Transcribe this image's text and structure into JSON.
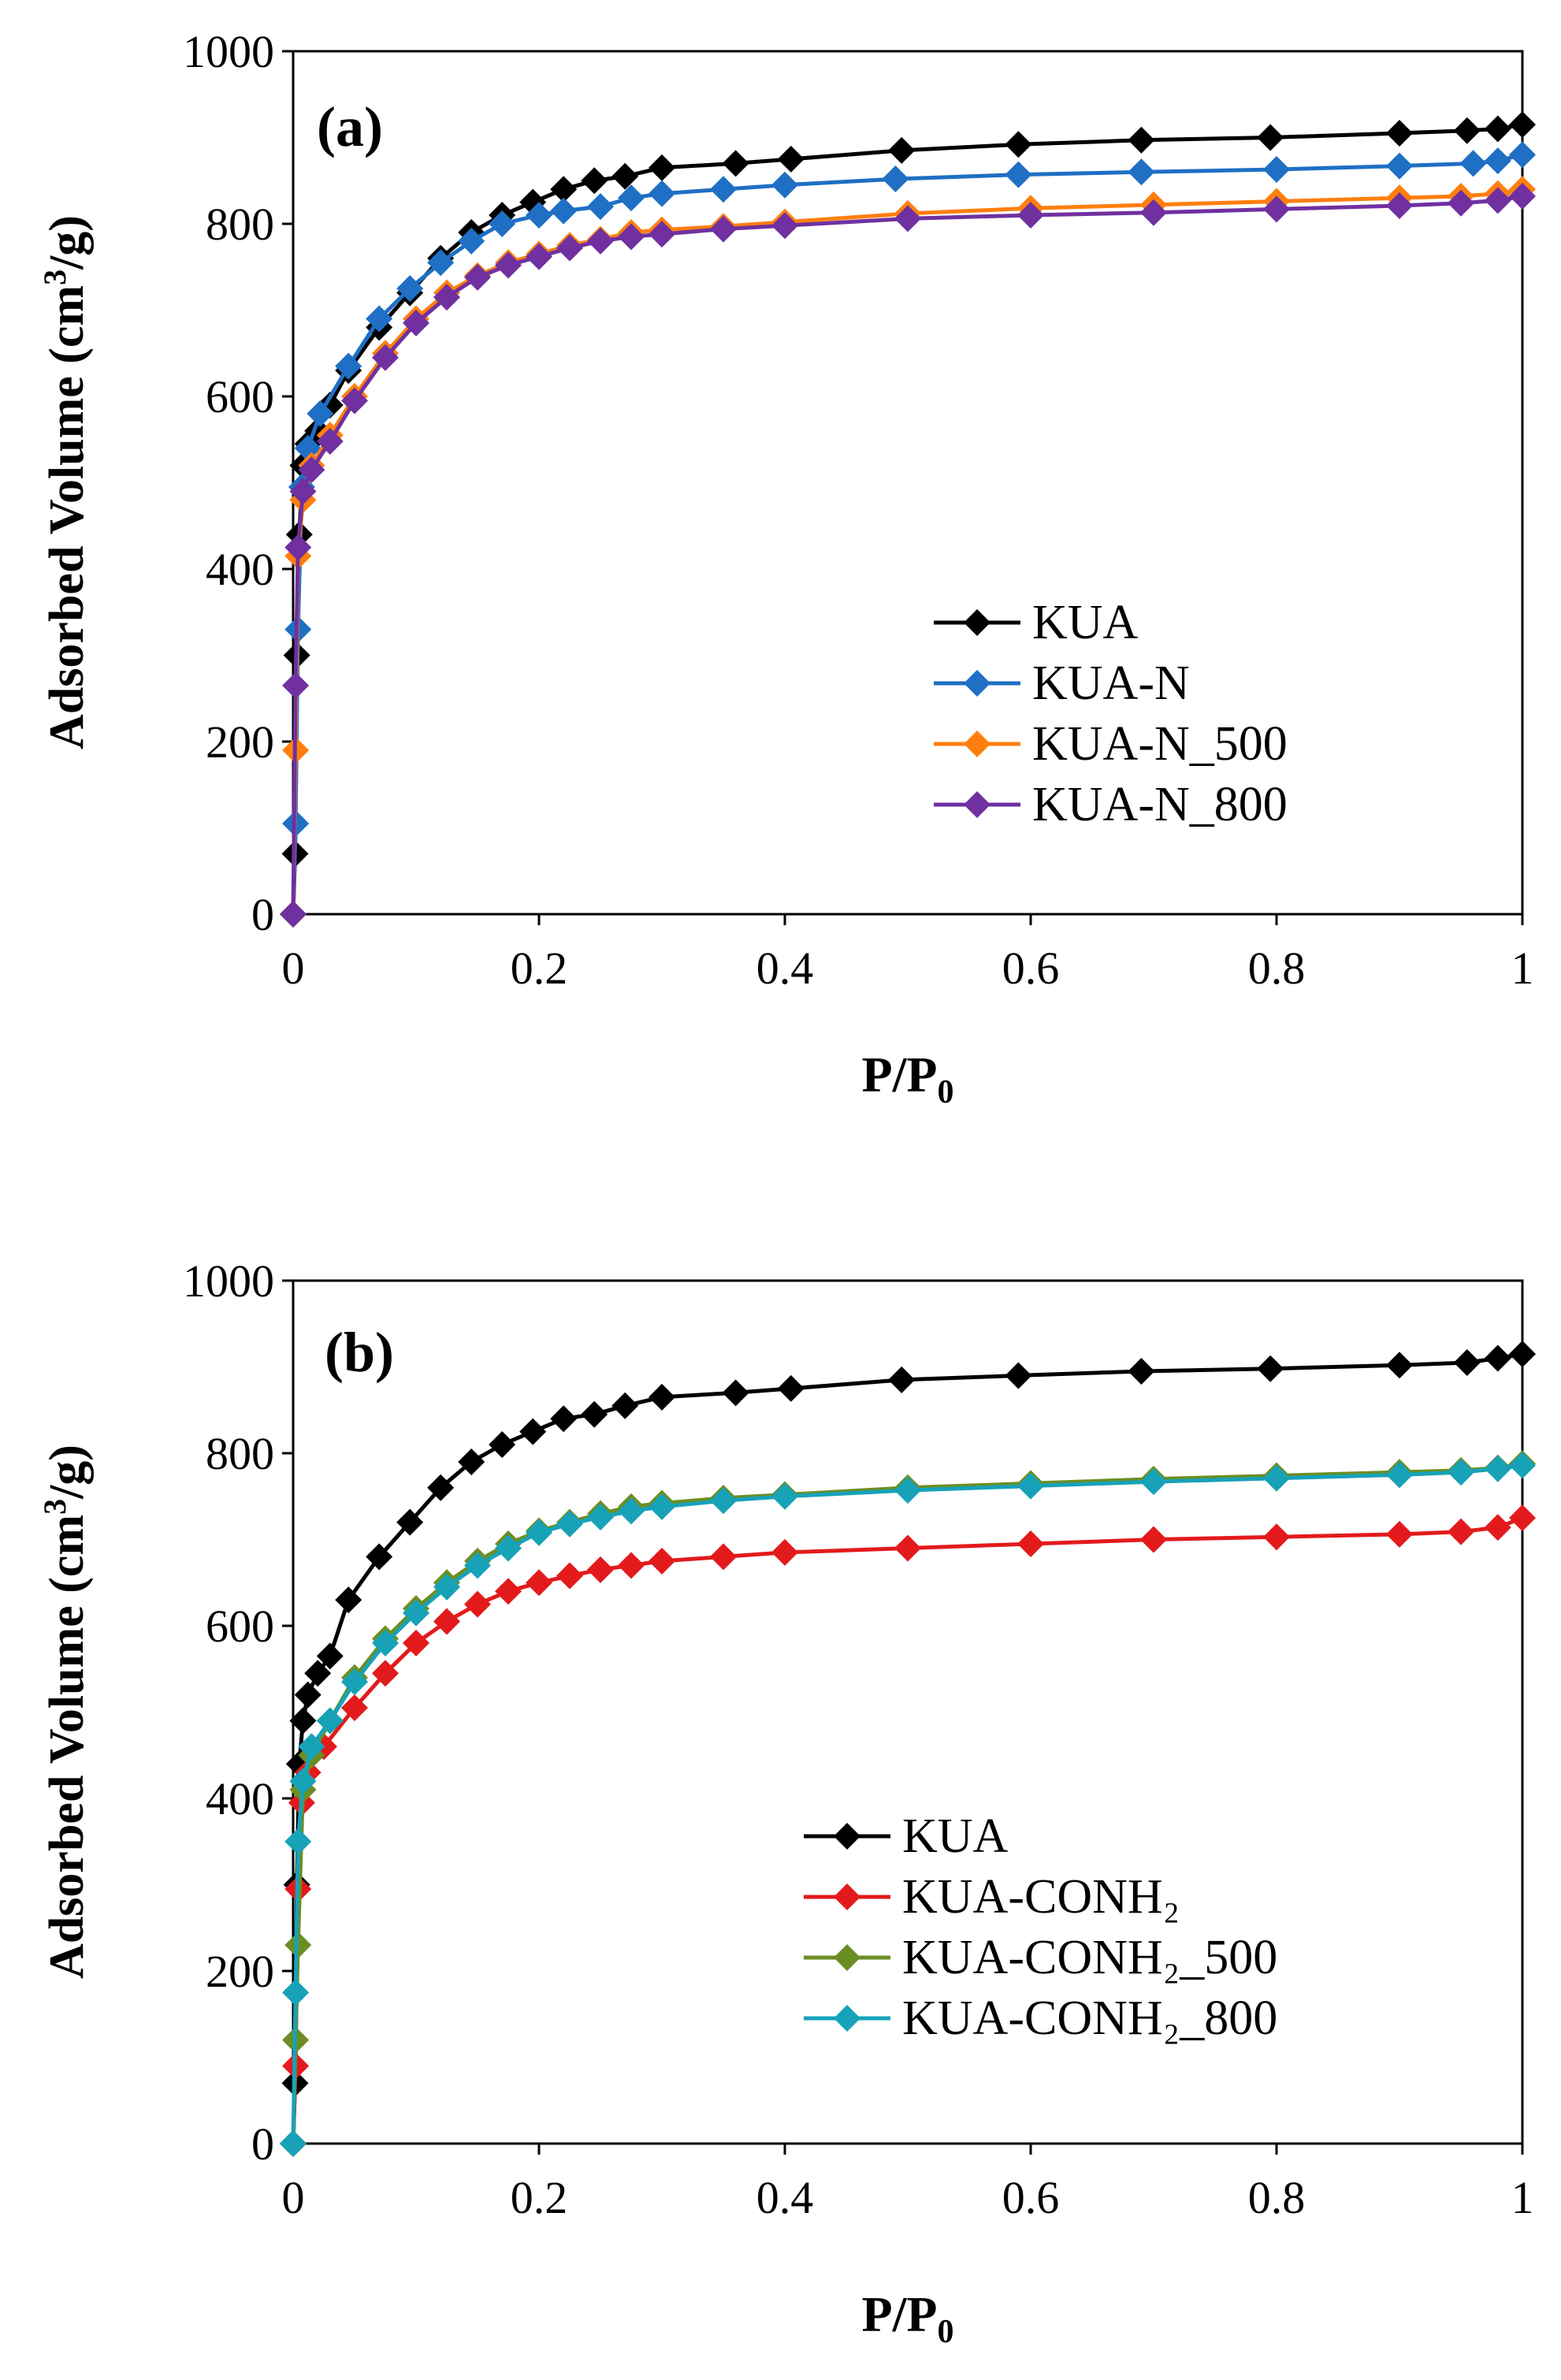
{
  "figure": {
    "panels": [
      {
        "panel_label": "(a)"
      },
      {
        "panel_label": "(b)"
      }
    ]
  },
  "chart_data": [
    {
      "type": "line",
      "panel_label": "(a)",
      "title": "",
      "xlabel": "P/P0",
      "ylabel": "Adsorbed Volume (cm3/g)",
      "xlim": [
        0,
        1
      ],
      "ylim": [
        0,
        1000
      ],
      "xticks": [
        0,
        0.2,
        0.4,
        0.6,
        0.8,
        1
      ],
      "xtick_labels": [
        "0",
        "0.2",
        "0.4",
        "0.6",
        "0.8",
        "1"
      ],
      "yticks": [
        0,
        200,
        400,
        600,
        800,
        1000
      ],
      "ytick_labels": [
        "0",
        "200",
        "400",
        "600",
        "800",
        "1000"
      ],
      "grid": false,
      "legend": "lower-right",
      "series": [
        {
          "name": "KUA",
          "color": "#000000",
          "x": [
            0.0,
            0.0016,
            0.003,
            0.005,
            0.008,
            0.012,
            0.02,
            0.03,
            0.045,
            0.07,
            0.095,
            0.12,
            0.145,
            0.17,
            0.195,
            0.22,
            0.245,
            0.27,
            0.3,
            0.36,
            0.405,
            0.495,
            0.59,
            0.69,
            0.795,
            0.9,
            0.955,
            0.98,
            1.0
          ],
          "y": [
            0,
            70,
            300,
            440,
            520,
            545,
            560,
            590,
            630,
            680,
            720,
            760,
            790,
            810,
            825,
            840,
            850,
            855,
            865,
            870,
            875,
            885,
            892,
            897,
            900,
            905,
            908,
            910,
            915
          ]
        },
        {
          "name": "KUA-N",
          "color": "#1f6fc4",
          "x": [
            0.0,
            0.002,
            0.004,
            0.007,
            0.012,
            0.022,
            0.045,
            0.07,
            0.095,
            0.12,
            0.145,
            0.17,
            0.2,
            0.22,
            0.25,
            0.275,
            0.3,
            0.35,
            0.4,
            0.49,
            0.59,
            0.69,
            0.8,
            0.9,
            0.96,
            0.98,
            1.0
          ],
          "y": [
            0,
            105,
            330,
            495,
            540,
            580,
            635,
            690,
            725,
            755,
            780,
            800,
            810,
            815,
            820,
            830,
            835,
            840,
            845,
            852,
            857,
            860,
            863,
            867,
            870,
            873,
            880
          ]
        },
        {
          "name": "KUA-N_500",
          "color": "#ff7f0e",
          "x": [
            0.0,
            0.002,
            0.004,
            0.008,
            0.015,
            0.03,
            0.05,
            0.075,
            0.1,
            0.125,
            0.15,
            0.175,
            0.2,
            0.225,
            0.25,
            0.275,
            0.3,
            0.35,
            0.4,
            0.5,
            0.6,
            0.7,
            0.8,
            0.9,
            0.95,
            0.98,
            1.0
          ],
          "y": [
            0,
            190,
            415,
            480,
            520,
            555,
            600,
            650,
            690,
            720,
            740,
            755,
            765,
            775,
            782,
            790,
            793,
            797,
            802,
            812,
            818,
            822,
            826,
            830,
            832,
            835,
            840
          ]
        },
        {
          "name": "KUA-N_800",
          "color": "#7030a0",
          "x": [
            0.0,
            0.002,
            0.004,
            0.008,
            0.015,
            0.03,
            0.05,
            0.075,
            0.1,
            0.125,
            0.15,
            0.175,
            0.2,
            0.225,
            0.25,
            0.275,
            0.3,
            0.35,
            0.4,
            0.5,
            0.6,
            0.7,
            0.8,
            0.9,
            0.95,
            0.98,
            1.0
          ],
          "y": [
            0,
            265,
            425,
            490,
            515,
            548,
            595,
            645,
            685,
            715,
            738,
            752,
            762,
            772,
            780,
            785,
            788,
            794,
            798,
            806,
            810,
            813,
            817,
            821,
            824,
            827,
            832
          ]
        }
      ]
    },
    {
      "type": "line",
      "panel_label": "(b)",
      "title": "",
      "xlabel": "P/P0",
      "ylabel": "Adsorbed Volume (cm3/g)",
      "xlim": [
        0,
        1
      ],
      "ylim": [
        0,
        1000
      ],
      "xticks": [
        0,
        0.2,
        0.4,
        0.6,
        0.8,
        1
      ],
      "xtick_labels": [
        "0",
        "0.2",
        "0.4",
        "0.6",
        "0.8",
        "1"
      ],
      "yticks": [
        0,
        200,
        400,
        600,
        800,
        1000
      ],
      "ytick_labels": [
        "0",
        "200",
        "400",
        "600",
        "800",
        "1000"
      ],
      "grid": false,
      "legend": "lower-right",
      "series": [
        {
          "name": "KUA",
          "color": "#000000",
          "x": [
            0.0,
            0.0016,
            0.003,
            0.005,
            0.008,
            0.012,
            0.02,
            0.03,
            0.045,
            0.07,
            0.095,
            0.12,
            0.145,
            0.17,
            0.195,
            0.22,
            0.245,
            0.27,
            0.3,
            0.36,
            0.405,
            0.495,
            0.59,
            0.69,
            0.795,
            0.9,
            0.955,
            0.98,
            1.0
          ],
          "y": [
            0,
            70,
            300,
            440,
            490,
            520,
            545,
            565,
            630,
            680,
            720,
            760,
            790,
            810,
            825,
            840,
            845,
            855,
            865,
            870,
            875,
            885,
            890,
            895,
            898,
            902,
            905,
            910,
            915
          ]
        },
        {
          "name": "KUA-CONH₂",
          "color": "#e31a1c",
          "x": [
            0.0,
            0.002,
            0.004,
            0.007,
            0.012,
            0.025,
            0.05,
            0.075,
            0.1,
            0.125,
            0.15,
            0.175,
            0.2,
            0.225,
            0.25,
            0.275,
            0.3,
            0.35,
            0.4,
            0.5,
            0.6,
            0.7,
            0.8,
            0.9,
            0.95,
            0.98,
            1.0
          ],
          "y": [
            0,
            90,
            295,
            395,
            430,
            460,
            505,
            545,
            580,
            605,
            625,
            640,
            650,
            658,
            665,
            670,
            675,
            680,
            685,
            690,
            695,
            700,
            703,
            706,
            709,
            714,
            725
          ]
        },
        {
          "name": "KUA-CONH₂_500",
          "color": "#6b8e23",
          "x": [
            0.0,
            0.002,
            0.004,
            0.008,
            0.015,
            0.03,
            0.05,
            0.075,
            0.1,
            0.125,
            0.15,
            0.175,
            0.2,
            0.225,
            0.25,
            0.275,
            0.3,
            0.35,
            0.4,
            0.5,
            0.6,
            0.7,
            0.8,
            0.9,
            0.95,
            0.98,
            1.0
          ],
          "y": [
            0,
            120,
            230,
            410,
            450,
            490,
            540,
            585,
            620,
            650,
            675,
            695,
            710,
            720,
            730,
            738,
            742,
            748,
            752,
            760,
            765,
            770,
            774,
            778,
            780,
            783,
            788
          ]
        },
        {
          "name": "KUA-CONH₂_800",
          "color": "#17a2b8",
          "x": [
            0.0,
            0.002,
            0.004,
            0.008,
            0.015,
            0.03,
            0.05,
            0.075,
            0.1,
            0.125,
            0.15,
            0.175,
            0.2,
            0.225,
            0.25,
            0.275,
            0.3,
            0.35,
            0.4,
            0.5,
            0.6,
            0.7,
            0.8,
            0.9,
            0.95,
            0.98,
            1.0
          ],
          "y": [
            0,
            175,
            350,
            420,
            460,
            490,
            535,
            580,
            615,
            645,
            670,
            690,
            708,
            718,
            726,
            733,
            738,
            745,
            750,
            757,
            762,
            767,
            771,
            775,
            778,
            782,
            786
          ]
        }
      ]
    }
  ]
}
